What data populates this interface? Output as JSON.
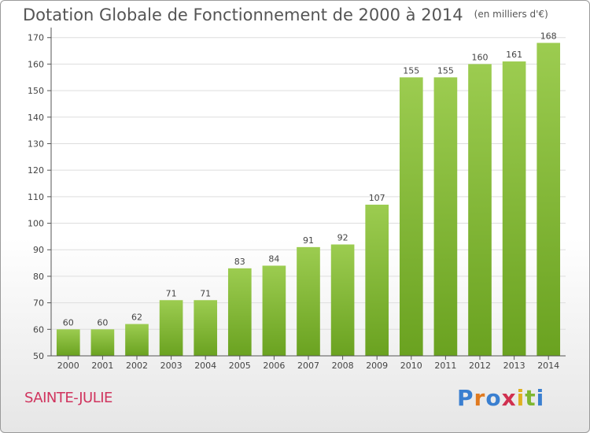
{
  "chart_data": {
    "type": "bar",
    "title": "Dotation Globale de Fonctionnement de 2000 à 2014",
    "subtitle": "(en milliers d'€)",
    "categories": [
      "2000",
      "2001",
      "2002",
      "2003",
      "2004",
      "2005",
      "2006",
      "2007",
      "2008",
      "2009",
      "2010",
      "2011",
      "2012",
      "2013",
      "2014"
    ],
    "values": [
      60,
      60,
      62,
      71,
      71,
      83,
      84,
      91,
      92,
      107,
      155,
      155,
      160,
      161,
      168
    ],
    "ylim": [
      50,
      172
    ],
    "yticks": [
      50,
      60,
      70,
      80,
      90,
      100,
      110,
      120,
      130,
      140,
      150,
      160,
      170
    ],
    "grid": true,
    "colors": {
      "bar_top": "#9ccc50",
      "bar_bottom": "#6aa220",
      "grid": "#dddddd"
    }
  },
  "footer": {
    "city": "SAINTE-JULIE",
    "brand": "Proxiti",
    "brand_colors": [
      "#3a7fd0",
      "#e07a20",
      "#3a7fd0",
      "#d03050",
      "#e0b020",
      "#7fb830",
      "#3a7fd0"
    ]
  }
}
